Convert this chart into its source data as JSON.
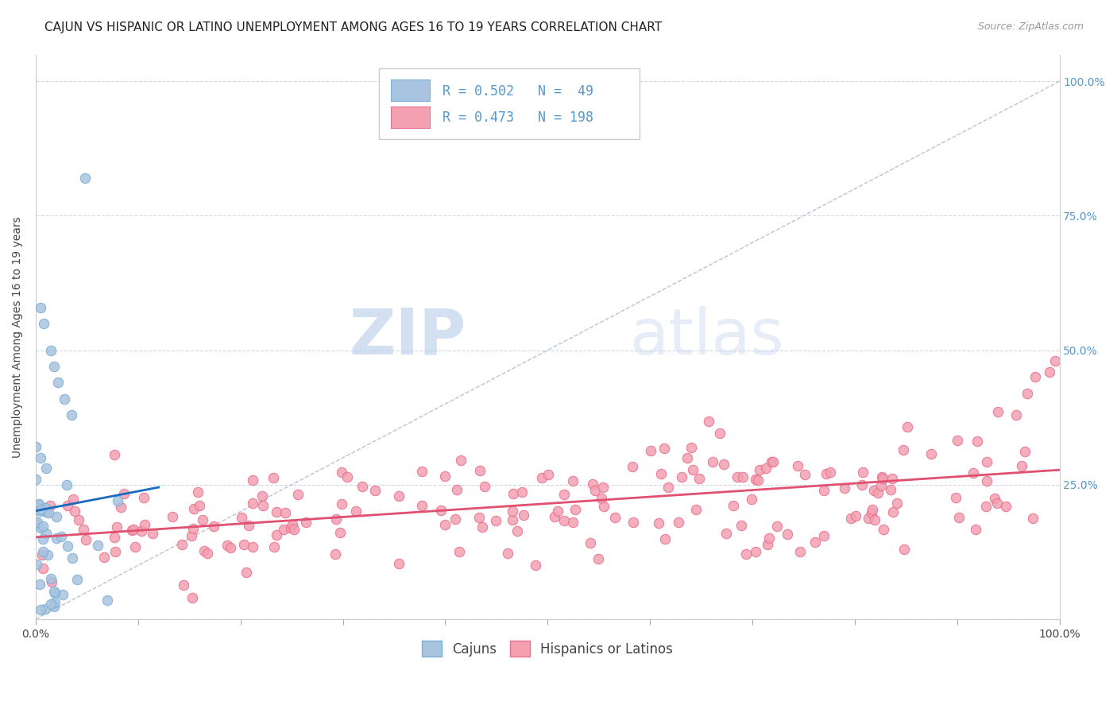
{
  "title": "CAJUN VS HISPANIC OR LATINO UNEMPLOYMENT AMONG AGES 16 TO 19 YEARS CORRELATION CHART",
  "source": "Source: ZipAtlas.com",
  "ylabel": "Unemployment Among Ages 16 to 19 years",
  "cajun_color": "#a8c4e0",
  "hispanic_color": "#f4a0b0",
  "cajun_edge_color": "#7bafd4",
  "hispanic_edge_color": "#e87090",
  "line_cajun_color": "#1a6bbf",
  "line_hispanic_color": "#e05070",
  "diagonal_color": "#b8c4d4",
  "R_cajun": 0.502,
  "N_cajun": 49,
  "R_hispanic": 0.473,
  "N_hispanic": 198,
  "legend_label_cajun": "Cajuns",
  "legend_label_hispanic": "Hispanics or Latinos",
  "watermark_zip": "ZIP",
  "watermark_atlas": "atlas",
  "title_fontsize": 11,
  "axis_fontsize": 10,
  "tick_fontsize": 10,
  "legend_fontsize": 12,
  "marker_size": 80
}
